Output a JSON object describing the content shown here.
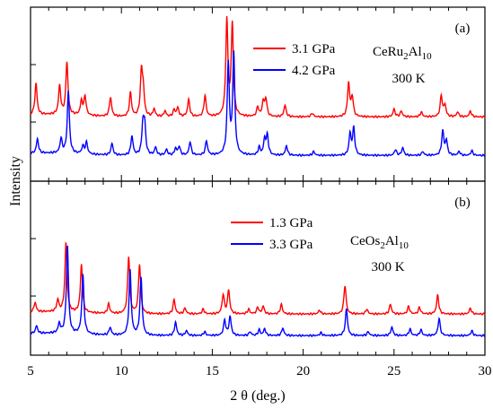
{
  "chart_data": [
    {
      "panel_label": "(a)",
      "type": "line",
      "ylabel": "Intensity",
      "xlim": [
        5,
        30
      ],
      "compound": {
        "prefix": "CeRu",
        "sub1": "2",
        "mid": "Al",
        "sub2": "10"
      },
      "temperature": "300 K",
      "series": [
        {
          "name": "3.1 GPa",
          "color": "#ff0000",
          "baseline": 0.37,
          "peakscale": 1.0,
          "shift": 0.0,
          "peaks": [
            [
              5.3,
              0.33
            ],
            [
              6.6,
              0.3
            ],
            [
              7.0,
              0.55
            ],
            [
              7.8,
              0.15
            ],
            [
              8.0,
              0.2
            ],
            [
              9.4,
              0.2
            ],
            [
              10.5,
              0.25
            ],
            [
              11.1,
              0.45
            ],
            [
              11.2,
              0.25
            ],
            [
              11.8,
              0.08
            ],
            [
              12.4,
              0.06
            ],
            [
              12.9,
              0.07
            ],
            [
              13.1,
              0.09
            ],
            [
              13.7,
              0.18
            ],
            [
              14.6,
              0.22
            ],
            [
              15.8,
              1.0
            ],
            [
              16.1,
              0.95
            ],
            [
              17.5,
              0.1
            ],
            [
              17.8,
              0.15
            ],
            [
              17.95,
              0.18
            ],
            [
              19.0,
              0.12
            ],
            [
              20.5,
              0.04
            ],
            [
              22.5,
              0.35
            ],
            [
              22.7,
              0.2
            ],
            [
              25.0,
              0.08
            ],
            [
              25.4,
              0.06
            ],
            [
              26.5,
              0.05
            ],
            [
              27.6,
              0.22
            ],
            [
              27.8,
              0.12
            ],
            [
              28.5,
              0.05
            ],
            [
              29.2,
              0.06
            ]
          ]
        },
        {
          "name": "4.2 GPa",
          "color": "#0000ff",
          "baseline": 0.12,
          "peakscale": 1.0,
          "shift": 0.08,
          "peaks": [
            [
              5.3,
              0.15
            ],
            [
              6.6,
              0.15
            ],
            [
              7.0,
              0.65
            ],
            [
              7.8,
              0.08
            ],
            [
              8.0,
              0.12
            ],
            [
              9.4,
              0.12
            ],
            [
              10.5,
              0.2
            ],
            [
              11.1,
              0.3
            ],
            [
              11.2,
              0.3
            ],
            [
              11.8,
              0.08
            ],
            [
              12.4,
              0.06
            ],
            [
              12.9,
              0.07
            ],
            [
              13.1,
              0.09
            ],
            [
              13.7,
              0.14
            ],
            [
              14.6,
              0.15
            ],
            [
              15.8,
              0.95
            ],
            [
              16.1,
              1.05
            ],
            [
              17.5,
              0.08
            ],
            [
              17.8,
              0.16
            ],
            [
              17.95,
              0.2
            ],
            [
              19.0,
              0.1
            ],
            [
              20.5,
              0.04
            ],
            [
              22.5,
              0.22
            ],
            [
              22.7,
              0.28
            ],
            [
              25.0,
              0.06
            ],
            [
              25.4,
              0.08
            ],
            [
              26.5,
              0.04
            ],
            [
              27.6,
              0.25
            ],
            [
              27.8,
              0.15
            ],
            [
              28.5,
              0.04
            ],
            [
              29.2,
              0.05
            ]
          ]
        }
      ]
    },
    {
      "panel_label": "(b)",
      "type": "line",
      "xlabel": "2 θ (deg.)",
      "xlim": [
        5,
        30
      ],
      "xticks": [
        5,
        10,
        15,
        20,
        25,
        30
      ],
      "compound": {
        "prefix": "CeOs",
        "sub1": "2",
        "mid": "Al",
        "sub2": "10"
      },
      "temperature": "300 K",
      "series": [
        {
          "name": "1.3 GPa",
          "color": "#ff0000",
          "baseline": 0.22,
          "peakscale": 1.0,
          "shift": 0.0,
          "peaks": [
            [
              5.25,
              0.1
            ],
            [
              6.5,
              0.12
            ],
            [
              6.95,
              0.72
            ],
            [
              7.8,
              0.5
            ],
            [
              9.3,
              0.1
            ],
            [
              10.4,
              0.6
            ],
            [
              11.0,
              0.52
            ],
            [
              12.9,
              0.15
            ],
            [
              13.5,
              0.06
            ],
            [
              14.5,
              0.05
            ],
            [
              15.6,
              0.2
            ],
            [
              15.9,
              0.25
            ],
            [
              17.0,
              0.05
            ],
            [
              17.5,
              0.07
            ],
            [
              17.8,
              0.08
            ],
            [
              18.8,
              0.1
            ],
            [
              20.9,
              0.04
            ],
            [
              22.3,
              0.3
            ],
            [
              23.5,
              0.05
            ],
            [
              24.8,
              0.1
            ],
            [
              25.8,
              0.08
            ],
            [
              26.4,
              0.07
            ],
            [
              27.4,
              0.2
            ],
            [
              29.2,
              0.06
            ]
          ]
        },
        {
          "name": "3.3 GPa",
          "color": "#0000ff",
          "baseline": 0.08,
          "peakscale": 1.0,
          "shift": 0.08,
          "peaks": [
            [
              5.25,
              0.08
            ],
            [
              6.5,
              0.1
            ],
            [
              6.95,
              0.92
            ],
            [
              7.8,
              0.62
            ],
            [
              9.3,
              0.08
            ],
            [
              10.4,
              0.68
            ],
            [
              11.0,
              0.6
            ],
            [
              12.9,
              0.14
            ],
            [
              13.5,
              0.05
            ],
            [
              14.5,
              0.04
            ],
            [
              15.6,
              0.16
            ],
            [
              15.9,
              0.2
            ],
            [
              17.0,
              0.04
            ],
            [
              17.5,
              0.06
            ],
            [
              17.8,
              0.07
            ],
            [
              18.8,
              0.08
            ],
            [
              20.9,
              0.03
            ],
            [
              22.3,
              0.28
            ],
            [
              23.5,
              0.04
            ],
            [
              24.8,
              0.09
            ],
            [
              25.8,
              0.07
            ],
            [
              26.4,
              0.06
            ],
            [
              27.4,
              0.18
            ],
            [
              29.2,
              0.05
            ]
          ]
        }
      ]
    }
  ]
}
